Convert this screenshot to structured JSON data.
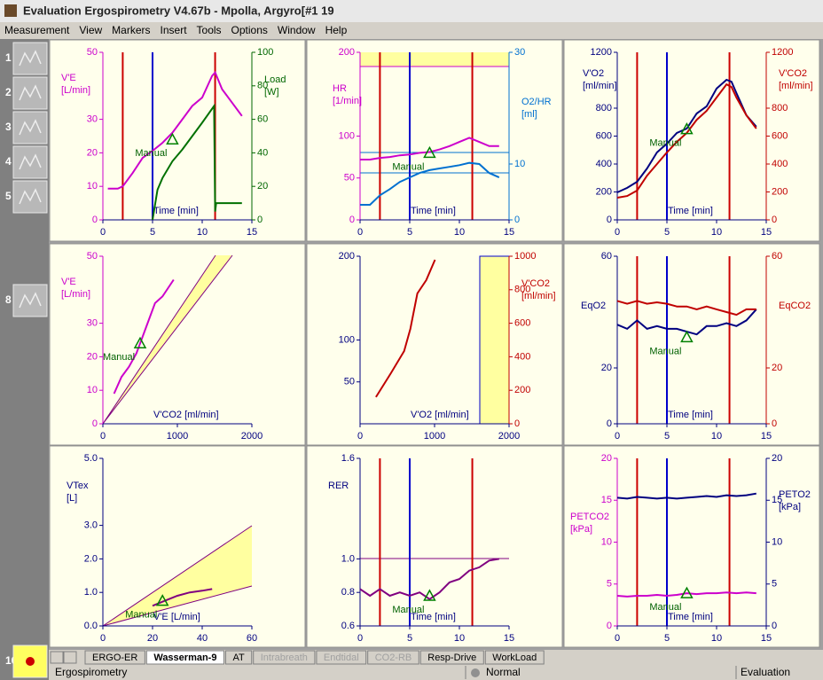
{
  "window": {
    "title": "Evaluation Ergospirometry  V4.67b - Mpolla, Argyro[#1 19",
    "menu": [
      "Measurement",
      "View",
      "Markers",
      "Insert",
      "Tools",
      "Options",
      "Window",
      "Help"
    ],
    "toolbar": [
      "1",
      "2",
      "3",
      "4",
      "5",
      "8",
      "10"
    ],
    "tabs": [
      "ERGO-ER",
      "Wasserman-9",
      "AT",
      "Intrabreath",
      "Endtidal",
      "CO2-RB",
      "Resp-Drive",
      "WorkLoad"
    ],
    "status": [
      "Ergospirometry",
      "Normal",
      "Evaluation"
    ]
  },
  "markers": [
    {
      "x": 2,
      "color": "#cc0000"
    },
    {
      "x": 5,
      "color": "#0000cc"
    },
    {
      "x": 11.3,
      "color": "#cc0000"
    }
  ],
  "chart_data": [
    {
      "type": "line",
      "left_label": [
        "V'E",
        "[L/min]"
      ],
      "left_color": "#cc00cc",
      "right_label": [
        "Load",
        "[W]"
      ],
      "right_color": "#006600",
      "x_label": "Time  [min]",
      "xlim": [
        0,
        15
      ],
      "xticks": [
        0,
        5,
        10,
        15
      ],
      "ylim": [
        0,
        50
      ],
      "yticks": [
        0,
        10,
        20,
        30,
        50
      ],
      "y2lim": [
        0,
        100
      ],
      "y2ticks": [
        0,
        20,
        40,
        60,
        80,
        100
      ],
      "show_markers": true,
      "series": [
        {
          "color": "#cc00cc",
          "x": [
            0.5,
            1.5,
            2,
            3,
            4,
            5,
            6,
            7,
            8,
            9,
            10,
            11,
            11.3,
            12,
            13,
            14
          ],
          "values": [
            9.3,
            9.3,
            10,
            14,
            18.5,
            20.6,
            23,
            26,
            30,
            34,
            36.5,
            43,
            44,
            39,
            35,
            31
          ]
        },
        {
          "color": "#007000",
          "axis": "y2",
          "x": [
            5,
            5.5,
            6,
            7,
            8,
            9,
            10,
            11.2,
            11.3,
            11.4,
            14
          ],
          "values": [
            0,
            18,
            25,
            35,
            42,
            50,
            58,
            68,
            5,
            10,
            10
          ]
        }
      ],
      "manual": {
        "x": 7,
        "y": 24,
        "label": "Manual"
      }
    },
    {
      "type": "line",
      "left_label": [
        "HR",
        "[1/min]"
      ],
      "left_color": "#cc00cc",
      "right_label": [
        "O2/HR",
        "[ml]"
      ],
      "right_color": "#0070d0",
      "x_label": "Time  [min]",
      "xlim": [
        0,
        15
      ],
      "xticks": [
        0,
        5,
        10,
        15
      ],
      "ylim": [
        0,
        200
      ],
      "yticks": [
        0,
        50,
        100,
        200
      ],
      "y2lim": [
        0,
        30
      ],
      "y2ticks": [
        0,
        10,
        30
      ],
      "show_markers": true,
      "series": [
        {
          "color": "#cc00cc",
          "x": [
            0,
            1,
            2,
            3,
            4,
            5,
            6,
            7,
            8,
            9,
            10,
            11,
            12,
            13,
            14
          ],
          "values": [
            72,
            72,
            74,
            75,
            77,
            78,
            80,
            81,
            84,
            88,
            93,
            98,
            93,
            88,
            88
          ]
        },
        {
          "color": "#0070d0",
          "axis": "y2",
          "x": [
            0,
            1,
            2,
            3,
            4,
            5,
            6,
            7,
            8,
            9,
            10,
            11,
            12,
            13,
            14
          ],
          "values": [
            2.7,
            2.7,
            4.4,
            5.5,
            6.8,
            7.6,
            8.4,
            8.9,
            9.2,
            9.5,
            9.8,
            10.2,
            10,
            8.4,
            7.6
          ]
        }
      ],
      "manual": {
        "x": 7,
        "y": 80,
        "label": "Manual"
      }
    },
    {
      "type": "line",
      "left_label": [
        "V'O2",
        "[ml/min]"
      ],
      "left_color": "#000080",
      "right_label": [
        "V'CO2",
        "[ml/min]"
      ],
      "right_color": "#c00000",
      "x_label": "Time  [min]",
      "xlim": [
        0,
        15
      ],
      "xticks": [
        0,
        5,
        10,
        15
      ],
      "ylim": [
        0,
        1200
      ],
      "yticks": [
        0,
        200,
        400,
        600,
        800,
        1200
      ],
      "y2lim": [
        0,
        1200
      ],
      "y2ticks": [
        0,
        200,
        400,
        600,
        800,
        1200
      ],
      "show_markers": true,
      "series": [
        {
          "color": "#000080",
          "x": [
            0,
            1,
            2,
            3,
            4,
            5,
            6,
            7,
            8,
            9,
            10,
            11,
            11.5,
            12,
            13,
            14
          ],
          "values": [
            197,
            229,
            273,
            368,
            483,
            546,
            622,
            654,
            762,
            813,
            940,
            1003,
            990,
            908,
            749,
            667
          ]
        },
        {
          "color": "#c00000",
          "axis": "y2",
          "x": [
            0,
            1,
            2,
            3,
            4,
            5,
            6,
            7,
            8,
            9,
            10,
            11,
            11.5,
            12,
            13,
            14
          ],
          "values": [
            159,
            171,
            210,
            317,
            400,
            483,
            559,
            622,
            717,
            781,
            876,
            971,
            952,
            876,
            749,
            654
          ]
        }
      ],
      "manual": {
        "x": 7,
        "y": 650,
        "label": "Manual"
      }
    },
    {
      "type": "line",
      "left_label": [
        "V'E",
        "[L/min]"
      ],
      "left_color": "#cc00cc",
      "x_label": "V'CO2  [ml/min]",
      "xlim": [
        0,
        2000
      ],
      "xticks": [
        0,
        1000,
        2000
      ],
      "ylim": [
        0,
        50
      ],
      "yticks": [
        0,
        10,
        20,
        30,
        50
      ],
      "series": [
        {
          "color": "#cc00cc",
          "x": [
            150,
            250,
            350,
            450,
            500,
            600,
            700,
            800,
            950
          ],
          "values": [
            9,
            14,
            17,
            21,
            24,
            30,
            36,
            38,
            43
          ]
        }
      ],
      "manual": {
        "x": 500,
        "y": 24,
        "label": "Manual"
      }
    },
    {
      "type": "line",
      "left_color": "#000080",
      "right_label": [
        "V'CO2",
        "[ml/min]"
      ],
      "right_color": "#c00000",
      "x_label": "V'O2  [ml/min]",
      "xlim": [
        0,
        2000
      ],
      "xticks": [
        0,
        1000,
        2000
      ],
      "ylim": [
        0,
        200
      ],
      "yticks": [
        50,
        100,
        200
      ],
      "y2lim": [
        0,
        1000
      ],
      "y2ticks": [
        0,
        200,
        400,
        600,
        800,
        1000
      ],
      "series": [
        {
          "color": "#c00000",
          "axis": "y2",
          "x": [
            213,
            414,
            592,
            675,
            769,
            888,
            1006
          ],
          "values": [
            159,
            302,
            434,
            566,
            778,
            857,
            979
          ]
        }
      ]
    },
    {
      "type": "line",
      "left_label": [
        "EqO2"
      ],
      "left_color": "#000080",
      "right_label": [
        "EqCO2"
      ],
      "right_color": "#c00000",
      "x_label": "Time  [min]",
      "xlim": [
        0,
        15
      ],
      "xticks": [
        0,
        5,
        10,
        15
      ],
      "ylim": [
        0,
        60
      ],
      "yticks": [
        0,
        20,
        60
      ],
      "y2lim": [
        0,
        60
      ],
      "y2ticks": [
        0,
        20,
        60
      ],
      "show_markers": true,
      "series": [
        {
          "color": "#000080",
          "x": [
            0,
            1,
            2,
            3,
            4,
            5,
            6,
            7,
            8,
            9,
            10,
            11,
            12,
            13,
            14
          ],
          "values": [
            35.5,
            34,
            37,
            34,
            35,
            34,
            34,
            33,
            32,
            35,
            35,
            36,
            35,
            37,
            41
          ]
        },
        {
          "color": "#c00000",
          "axis": "y2",
          "x": [
            0,
            1,
            2,
            3,
            4,
            5,
            6,
            7,
            8,
            9,
            10,
            11,
            12,
            13,
            14
          ],
          "values": [
            44,
            43,
            44,
            43,
            43.5,
            43,
            42,
            42,
            41,
            42,
            41,
            40,
            39,
            41,
            41
          ]
        }
      ],
      "manual": {
        "x": 7,
        "y": 31,
        "label": "Manual"
      }
    },
    {
      "type": "line",
      "left_label": [
        "VTex",
        "[L]"
      ],
      "left_color": "#000080",
      "x_label": "V'E  [L/min]",
      "xlim": [
        0,
        60
      ],
      "xticks": [
        0,
        20,
        40,
        60
      ],
      "ylim": [
        0,
        5
      ],
      "yticks": [
        {
          "value": 0,
          "label": "0.0"
        },
        {
          "value": 1,
          "label": "1.0"
        },
        {
          "value": 2,
          "label": "2.0"
        },
        {
          "value": 3,
          "label": "3.0"
        },
        {
          "value": 5,
          "label": "5.0"
        }
      ],
      "series": [
        {
          "color": "#800080",
          "x": [
            20,
            25,
            30,
            35,
            40,
            44
          ],
          "values": [
            0.6,
            0.75,
            0.9,
            1.0,
            1.05,
            1.1
          ]
        }
      ],
      "manual": {
        "x": 24,
        "y": 0.75,
        "label": "Manual"
      }
    },
    {
      "type": "line",
      "left_label": [
        "RER"
      ],
      "left_color": "#000080",
      "x_label": "Time  [min]",
      "xlim": [
        0,
        15
      ],
      "xticks": [
        0,
        5,
        10,
        15
      ],
      "ylim": [
        0.6,
        1.6
      ],
      "yticks": [
        0.6,
        0.8,
        {
          "value": 1,
          "label": "1.0"
        },
        1.6
      ],
      "show_markers": true,
      "series": [
        {
          "color": "#800080",
          "x": [
            0,
            1,
            2,
            3,
            4,
            5,
            6,
            7,
            8,
            9,
            10,
            11,
            12,
            13,
            14
          ],
          "values": [
            0.82,
            0.78,
            0.82,
            0.78,
            0.8,
            0.78,
            0.8,
            0.76,
            0.8,
            0.86,
            0.88,
            0.93,
            0.95,
            0.99,
            1.0
          ]
        }
      ],
      "manual": {
        "x": 7,
        "y": 0.78,
        "label": "Manual"
      }
    },
    {
      "type": "line",
      "left_label": [
        "PETCO2",
        "[kPa]"
      ],
      "left_color": "#cc00cc",
      "right_label": [
        "PETO2",
        "[kPa]"
      ],
      "right_color": "#000080",
      "x_label": "Time  [min]",
      "xlim": [
        0,
        15
      ],
      "xticks": [
        0,
        5,
        10,
        15
      ],
      "ylim": [
        0,
        20
      ],
      "yticks": [
        0,
        5,
        10,
        15,
        20
      ],
      "y2lim": [
        0,
        20
      ],
      "y2ticks": [
        0,
        5,
        10,
        15,
        20
      ],
      "show_markers": true,
      "series": [
        {
          "color": "#cc00cc",
          "x": [
            0,
            1,
            2,
            3,
            4,
            5,
            6,
            7,
            8,
            9,
            10,
            11,
            12,
            13,
            14
          ],
          "values": [
            3.6,
            3.5,
            3.6,
            3.6,
            3.7,
            3.6,
            3.7,
            3.9,
            3.8,
            3.9,
            3.9,
            4.0,
            3.9,
            4.0,
            3.9
          ]
        },
        {
          "color": "#000080",
          "axis": "y2",
          "x": [
            0,
            1,
            2,
            3,
            4,
            5,
            6,
            7,
            8,
            9,
            10,
            11,
            12,
            13,
            14
          ],
          "values": [
            15.3,
            15.2,
            15.4,
            15.3,
            15.2,
            15.3,
            15.2,
            15.3,
            15.4,
            15.5,
            15.4,
            15.6,
            15.5,
            15.6,
            15.8
          ]
        }
      ],
      "manual": {
        "x": 7,
        "y": 3.9,
        "label": "Manual"
      }
    }
  ]
}
